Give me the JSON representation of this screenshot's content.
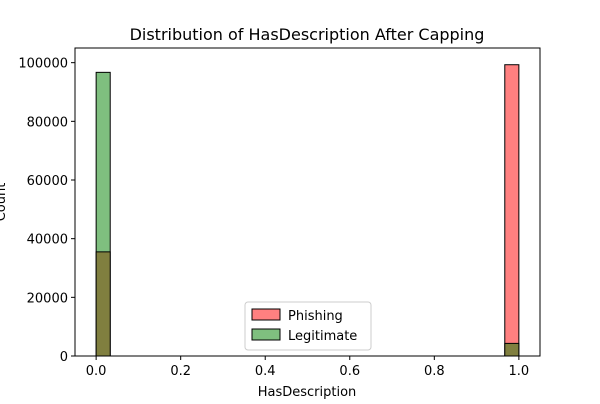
{
  "chart_data": {
    "type": "bar",
    "title": "Distribution of HasDescription After Capping",
    "xlabel": "HasDescription",
    "ylabel": "Count",
    "xlim": [
      -0.05,
      1.05
    ],
    "ylim": [
      0,
      105000
    ],
    "x_ticks": [
      "0.0",
      "0.2",
      "0.4",
      "0.6",
      "0.8",
      "1.0"
    ],
    "y_ticks": [
      "0",
      "20000",
      "40000",
      "60000",
      "80000",
      "100000"
    ],
    "bins": [
      {
        "x0": 0.0,
        "x1": 0.0333
      },
      {
        "x0": 0.9667,
        "x1": 1.0
      }
    ],
    "series": [
      {
        "name": "Phishing",
        "values": [
          35500,
          99300
        ],
        "color": "#ff8080"
      },
      {
        "name": "Legitimate",
        "values": [
          96700,
          4300
        ],
        "color": "#7fbf7f"
      }
    ],
    "overlap_color": "#807f3f",
    "legend_position": "lower center",
    "grid": false
  }
}
